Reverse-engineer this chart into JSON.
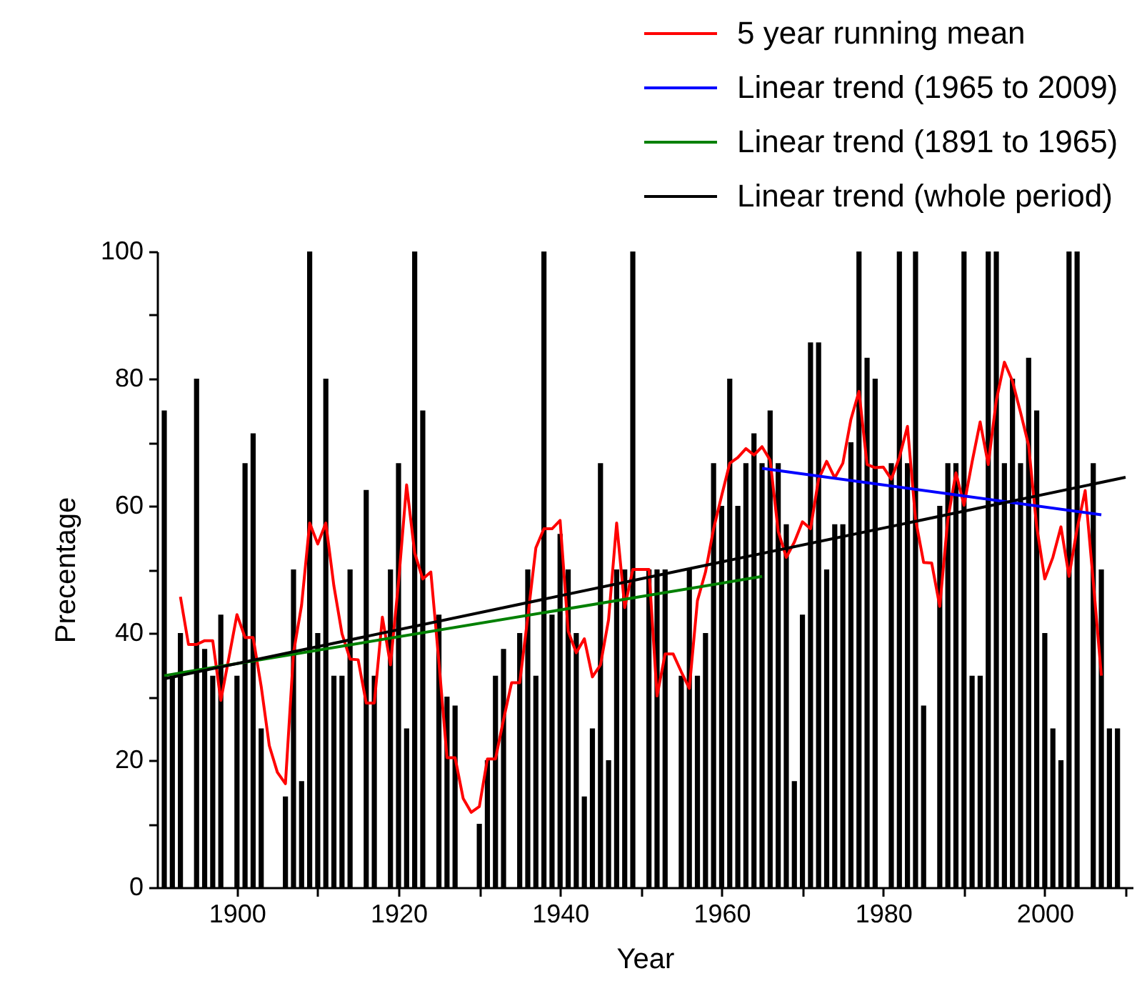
{
  "chart_data": {
    "type": "bar",
    "xlabel": "Year",
    "ylabel": "Precentage",
    "xlim": [
      1891,
      2010
    ],
    "ylim": [
      0,
      100
    ],
    "xticks": [
      1900,
      {
        "value": 1910,
        "label": null
      },
      1920,
      {
        "value": 1930,
        "label": null
      },
      1940,
      {
        "value": 1950,
        "label": null
      },
      1960,
      {
        "value": 1970,
        "label": null
      },
      1980,
      {
        "value": 1990,
        "label": null
      },
      2000,
      {
        "value": 2010,
        "label": null
      }
    ],
    "yticks": [
      0,
      {
        "value": 10,
        "label": null
      },
      20,
      {
        "value": 30,
        "label": null
      },
      40,
      {
        "value": 50,
        "label": null
      },
      60,
      {
        "value": 70,
        "label": null
      },
      80,
      {
        "value": 90,
        "label": null
      },
      100
    ],
    "legend": "top right",
    "series": [
      {
        "color": "#000000",
        "x": [
          1891,
          1892,
          1893,
          1894,
          1895,
          1896,
          1897,
          1898,
          1899,
          1900,
          1901,
          1902,
          1903,
          1904,
          1905,
          1906,
          1907,
          1908,
          1909,
          1910,
          1911,
          1912,
          1913,
          1914,
          1915,
          1916,
          1917,
          1918,
          1919,
          1920,
          1921,
          1922,
          1923,
          1924,
          1925,
          1926,
          1927,
          1928,
          1929,
          1930,
          1931,
          1932,
          1933,
          1934,
          1935,
          1936,
          1937,
          1938,
          1939,
          1940,
          1941,
          1942,
          1943,
          1944,
          1945,
          1946,
          1947,
          1948,
          1949,
          1950,
          1951,
          1952,
          1953,
          1954,
          1955,
          1956,
          1957,
          1958,
          1959,
          1960,
          1961,
          1962,
          1963,
          1964,
          1965,
          1966,
          1967,
          1968,
          1969,
          1970,
          1971,
          1972,
          1973,
          1974,
          1975,
          1976,
          1977,
          1978,
          1979,
          1980,
          1981,
          1982,
          1983,
          1984,
          1985,
          1986,
          1987,
          1988,
          1989,
          1990,
          1991,
          1992,
          1993,
          1994,
          1995,
          1996,
          1997,
          1998,
          1999,
          2000,
          2001,
          2002,
          2003,
          2004,
          2005,
          2006,
          2007,
          2008,
          2009
        ],
        "values": [
          75,
          33.3,
          40,
          null,
          80,
          37.5,
          33.3,
          42.9,
          null,
          33.3,
          66.7,
          71.4,
          25,
          null,
          null,
          14.3,
          50,
          16.7,
          100,
          40,
          80,
          33.3,
          33.3,
          50,
          null,
          62.5,
          33.3,
          null,
          50,
          66.7,
          25,
          100,
          75,
          null,
          42.9,
          30,
          28.6,
          null,
          null,
          10,
          20,
          33.3,
          37.5,
          null,
          40,
          50,
          33.3,
          100,
          42.9,
          55.6,
          50,
          40,
          14.3,
          25,
          66.7,
          20,
          50,
          50,
          100,
          null,
          50,
          50,
          50,
          null,
          33.3,
          50,
          33.3,
          40,
          66.7,
          60,
          80,
          60,
          66.7,
          71.4,
          66.7,
          75,
          66.7,
          57.1,
          16.7,
          42.9,
          85.7,
          85.7,
          50,
          57.1,
          57.1,
          70,
          100,
          83.3,
          80,
          null,
          66.7,
          100,
          66.7,
          100,
          28.6,
          null,
          60,
          66.7,
          66.7,
          100,
          33.3,
          33.3,
          100,
          100,
          66.7,
          80,
          66.7,
          83.3,
          75,
          40,
          25,
          20,
          100,
          100,
          null,
          66.7,
          50,
          25,
          25
        ]
      },
      {
        "type": "line",
        "name": "5 year running mean",
        "color": "#ff0000",
        "x": [
          1893,
          1894,
          1895,
          1896,
          1897,
          1898,
          1899,
          1900,
          1901,
          1902,
          1903,
          1904,
          1905,
          1906,
          1907,
          1908,
          1909,
          1910,
          1911,
          1912,
          1913,
          1914,
          1915,
          1916,
          1917,
          1918,
          1919,
          1920,
          1921,
          1922,
          1923,
          1924,
          1925,
          1926,
          1927,
          1928,
          1929,
          1930,
          1931,
          1932,
          1933,
          1934,
          1935,
          1936,
          1937,
          1938,
          1939,
          1940,
          1941,
          1942,
          1943,
          1944,
          1945,
          1946,
          1947,
          1948,
          1949,
          1950,
          1951,
          1952,
          1953,
          1954,
          1955,
          1956,
          1957,
          1958,
          1959,
          1960,
          1961,
          1962,
          1963,
          1964,
          1965,
          1966,
          1967,
          1968,
          1969,
          1970,
          1971,
          1972,
          1973,
          1974,
          1975,
          1976,
          1977,
          1978,
          1979,
          1980,
          1981,
          1982,
          1983,
          1984,
          1985,
          1986,
          1987,
          1988,
          1989,
          1990,
          1991,
          1992,
          1993,
          1994,
          1995,
          1996,
          1997,
          1998,
          1999,
          2000,
          2001,
          2002,
          2003,
          2004,
          2005,
          2006,
          2007
        ],
        "values": [
          45.7,
          38.2,
          38.2,
          38.8,
          38.8,
          29.4,
          36.1,
          42.9,
          39.3,
          39.3,
          31.6,
          22.3,
          18.1,
          16.3,
          36.9,
          44.4,
          57.3,
          54,
          57.3,
          47.4,
          39.9,
          35.9,
          35.8,
          29,
          29,
          42.5,
          35,
          48,
          63.3,
          52.6,
          48.5,
          49.6,
          35.4,
          20.4,
          20.4,
          14,
          11.8,
          12.7,
          20.2,
          20.2,
          26.4,
          32.2,
          32.2,
          42.5,
          53.4,
          56.4,
          56.4,
          57.7,
          40.3,
          36.9,
          39.1,
          33.1,
          35,
          42.1,
          57.3,
          44,
          50,
          50,
          50,
          30.1,
          36.7,
          36.7,
          33.9,
          31.3,
          45.1,
          49.6,
          56.4,
          61.6,
          66.7,
          67.6,
          69,
          68,
          69.3,
          67.2,
          56,
          51.9,
          54.3,
          57.5,
          56.4,
          64.2,
          67,
          64.4,
          66.7,
          73.6,
          78,
          66.5,
          66,
          66.1,
          64.2,
          67.6,
          72.5,
          57.9,
          51.1,
          51,
          44.2,
          57.9,
          65.2,
          60.1,
          66.9,
          73.2,
          66.5,
          76.6,
          82.6,
          79.6,
          74.7,
          69.5,
          56.7,
          48.5,
          51.9,
          56.7,
          48.9,
          56.4,
          62.4,
          48.1,
          33.3
        ]
      },
      {
        "type": "line",
        "name": "Linear trend (1965 to 2009)",
        "color": "#0000ff",
        "x": [
          1965,
          2007
        ],
        "values": [
          65.9,
          58.6
        ]
      },
      {
        "type": "line",
        "name": "Linear trend (1891 to 1965)",
        "color": "#008000",
        "x": [
          1891,
          1965
        ],
        "values": [
          33.3,
          48.9
        ]
      },
      {
        "type": "line",
        "name": "Linear trend (whole period)",
        "color": "#000000",
        "x": [
          1891,
          2010
        ],
        "values": [
          32.8,
          64.5
        ]
      }
    ]
  }
}
